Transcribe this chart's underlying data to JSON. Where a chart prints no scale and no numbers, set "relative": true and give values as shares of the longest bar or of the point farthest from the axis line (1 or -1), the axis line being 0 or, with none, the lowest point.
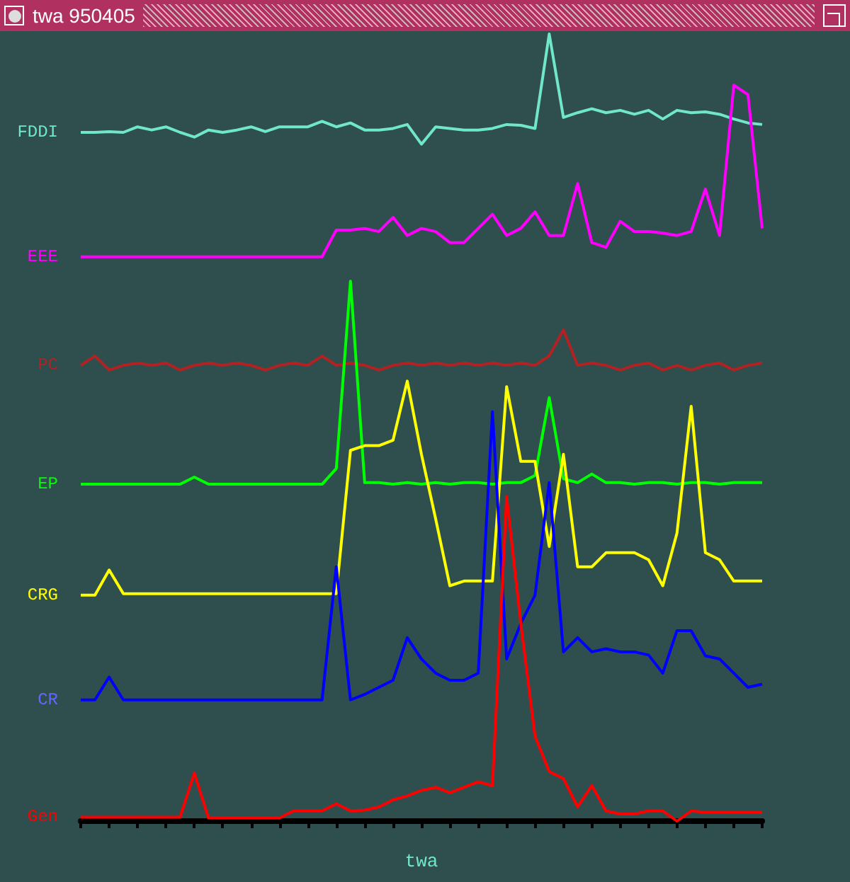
{
  "chart_data": {
    "type": "line",
    "title": "twa 950405",
    "xlabel": "twa",
    "relative": true,
    "grid": false,
    "legend": false,
    "marker": "none",
    "line_style": "solid",
    "categories": [
      null,
      null,
      null,
      null,
      null,
      null,
      null,
      null,
      null,
      null,
      null,
      null,
      null,
      null,
      null,
      null,
      null,
      null,
      null,
      null,
      null,
      null,
      null,
      null,
      null,
      null,
      null,
      null,
      null,
      null,
      null,
      null,
      null,
      null,
      null,
      null,
      null,
      null,
      null,
      null,
      null,
      null,
      null,
      null,
      null,
      null,
      null,
      null,
      null
    ],
    "series": [
      {
        "name": "FDDI",
        "color": "#70e8c8",
        "values": [
          0.875,
          0.875,
          0.876,
          0.875,
          0.882,
          0.878,
          0.882,
          0.875,
          0.869,
          0.878,
          0.875,
          0.878,
          0.882,
          0.876,
          0.882,
          0.882,
          0.882,
          0.889,
          0.882,
          0.887,
          0.878,
          0.878,
          0.88,
          0.885,
          0.86,
          0.882,
          0.88,
          0.878,
          0.878,
          0.88,
          0.885,
          0.884,
          0.88,
          1.0,
          0.894,
          0.9,
          0.905,
          0.9,
          0.903,
          0.898,
          0.903,
          0.892,
          0.903,
          0.9,
          0.901,
          0.898,
          0.892,
          0.887,
          0.885
        ]
      },
      {
        "name": "EEE",
        "color": "#ff00ff",
        "values": [
          0.717,
          0.717,
          0.717,
          0.717,
          0.717,
          0.717,
          0.717,
          0.717,
          0.717,
          0.717,
          0.717,
          0.717,
          0.717,
          0.717,
          0.717,
          0.717,
          0.717,
          0.717,
          0.751,
          0.751,
          0.753,
          0.749,
          0.767,
          0.744,
          0.753,
          0.749,
          0.735,
          0.735,
          0.753,
          0.771,
          0.744,
          0.753,
          0.774,
          0.744,
          0.744,
          0.81,
          0.735,
          0.729,
          0.762,
          0.749,
          0.749,
          0.747,
          0.744,
          0.749,
          0.803,
          0.744,
          0.935,
          0.923,
          0.753
        ]
      },
      {
        "name": "PC",
        "color": "#b22222",
        "values": [
          0.579,
          0.591,
          0.573,
          0.579,
          0.582,
          0.579,
          0.582,
          0.573,
          0.579,
          0.582,
          0.579,
          0.582,
          0.579,
          0.573,
          0.579,
          0.582,
          0.579,
          0.591,
          0.579,
          0.582,
          0.579,
          0.573,
          0.579,
          0.582,
          0.579,
          0.582,
          0.579,
          0.582,
          0.579,
          0.582,
          0.579,
          0.582,
          0.579,
          0.591,
          0.624,
          0.579,
          0.582,
          0.579,
          0.573,
          0.579,
          0.582,
          0.573,
          0.579,
          0.573,
          0.579,
          0.582,
          0.573,
          0.579,
          0.582
        ]
      },
      {
        "name": "EP",
        "color": "#00ff00",
        "values": [
          0.428,
          0.428,
          0.428,
          0.428,
          0.428,
          0.428,
          0.428,
          0.428,
          0.437,
          0.428,
          0.428,
          0.428,
          0.428,
          0.428,
          0.428,
          0.428,
          0.428,
          0.428,
          0.448,
          0.686,
          0.43,
          0.43,
          0.428,
          0.43,
          0.428,
          0.43,
          0.428,
          0.43,
          0.43,
          0.428,
          0.43,
          0.43,
          0.439,
          0.538,
          0.435,
          0.43,
          0.441,
          0.43,
          0.43,
          0.428,
          0.43,
          0.43,
          0.428,
          0.43,
          0.43,
          0.428,
          0.43,
          0.43,
          0.43
        ]
      },
      {
        "name": "CRG",
        "color": "#ffff00",
        "values": [
          0.287,
          0.287,
          0.319,
          0.289,
          0.289,
          0.289,
          0.289,
          0.289,
          0.289,
          0.289,
          0.289,
          0.289,
          0.289,
          0.289,
          0.289,
          0.289,
          0.289,
          0.289,
          0.289,
          0.471,
          0.477,
          0.477,
          0.484,
          0.559,
          0.466,
          0.384,
          0.299,
          0.305,
          0.305,
          0.305,
          0.552,
          0.457,
          0.457,
          0.349,
          0.466,
          0.323,
          0.323,
          0.341,
          0.341,
          0.341,
          0.332,
          0.299,
          0.366,
          0.527,
          0.341,
          0.332,
          0.305,
          0.305,
          0.305
        ]
      },
      {
        "name": "CR",
        "color": "#0000ff",
        "values": [
          0.154,
          0.154,
          0.183,
          0.154,
          0.154,
          0.154,
          0.154,
          0.154,
          0.154,
          0.154,
          0.154,
          0.154,
          0.154,
          0.154,
          0.154,
          0.154,
          0.154,
          0.154,
          0.323,
          0.154,
          0.161,
          0.17,
          0.179,
          0.233,
          0.206,
          0.188,
          0.179,
          0.179,
          0.188,
          0.52,
          0.206,
          0.251,
          0.287,
          0.43,
          0.215,
          0.233,
          0.215,
          0.219,
          0.215,
          0.215,
          0.211,
          0.188,
          0.242,
          0.242,
          0.21,
          0.206,
          0.188,
          0.17,
          0.174
        ]
      },
      {
        "name": "Gen",
        "color": "#ff0000",
        "values": [
          0.005,
          0.005,
          0.005,
          0.005,
          0.005,
          0.005,
          0.005,
          0.005,
          0.061,
          0.004,
          0.004,
          0.004,
          0.004,
          0.004,
          0.004,
          0.013,
          0.013,
          0.013,
          0.022,
          0.013,
          0.014,
          0.018,
          0.027,
          0.032,
          0.039,
          0.043,
          0.036,
          0.043,
          0.05,
          0.045,
          0.412,
          0.251,
          0.108,
          0.063,
          0.054,
          0.018,
          0.045,
          0.013,
          0.009,
          0.009,
          0.013,
          0.013,
          0.0,
          0.013,
          0.011,
          0.011,
          0.011,
          0.011,
          0.011
        ]
      }
    ]
  }
}
